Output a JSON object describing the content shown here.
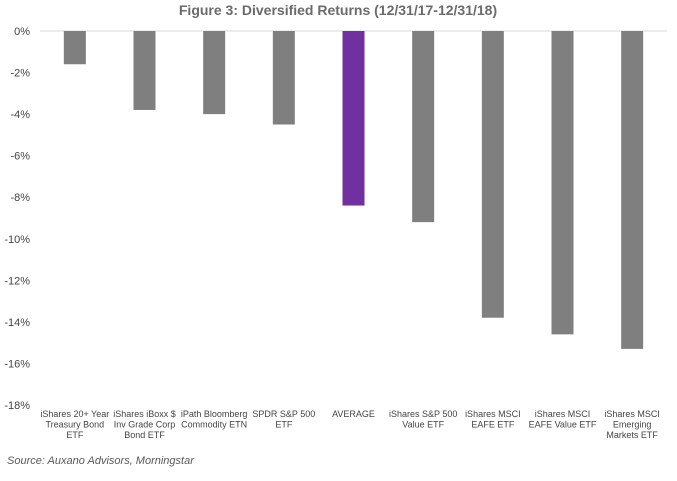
{
  "chart_data": {
    "type": "bar",
    "title": "Figure 3: Diversified Returns (12/31/17-12/31/18)",
    "source": "Source: Auxano Advisors, Morningstar",
    "xlabel": "",
    "ylabel": "",
    "ylim": [
      -18,
      0
    ],
    "y_ticks": [
      0,
      -2,
      -4,
      -6,
      -8,
      -10,
      -12,
      -14,
      -16,
      -18
    ],
    "y_tick_labels": [
      "0%",
      "-2%",
      "-4%",
      "-6%",
      "-8%",
      "-10%",
      "-12%",
      "-14%",
      "-16%",
      "-18%"
    ],
    "grid": false,
    "legend": "none",
    "categories": [
      [
        "iShares 20+ Year",
        "Treasury Bond",
        "ETF"
      ],
      [
        "iShares iBoxx $",
        "Inv Grade Corp",
        "Bond ETF"
      ],
      [
        "iPath Bloomberg",
        "Commodity ETN"
      ],
      [
        "SPDR S&P 500",
        "ETF"
      ],
      [
        "AVERAGE"
      ],
      [
        "iShares S&P 500",
        "Value ETF"
      ],
      [
        "iShares MSCI",
        "EAFE ETF"
      ],
      [
        "iShares MSCI",
        "EAFE Value ETF"
      ],
      [
        "iShares MSCI",
        "Emerging",
        "Markets ETF"
      ]
    ],
    "values": [
      -1.6,
      -3.8,
      -4.0,
      -4.5,
      -8.4,
      -9.2,
      -13.8,
      -14.6,
      -15.3
    ],
    "colors": [
      "#7f7f7f",
      "#7f7f7f",
      "#7f7f7f",
      "#7f7f7f",
      "#7030a0",
      "#7f7f7f",
      "#7f7f7f",
      "#7f7f7f",
      "#7f7f7f"
    ],
    "axis_color": "#d9d9d9"
  }
}
